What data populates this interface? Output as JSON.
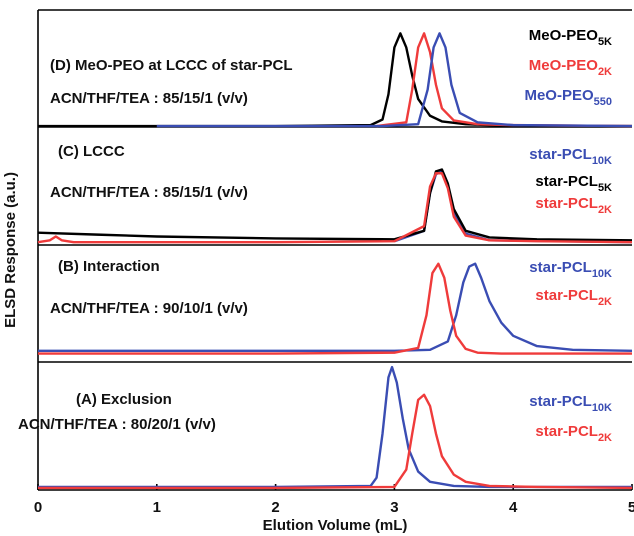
{
  "chart_data": {
    "type": "line",
    "xlabel": "Elution Volume (mL)",
    "ylabel": "ELSD Response (a.u.)",
    "xlim": [
      0,
      5
    ],
    "xticks": [
      0,
      1,
      2,
      3,
      4,
      5
    ],
    "panels": [
      {
        "labels": [
          "(D) MeO-PEO at LCCC of star-PCL",
          "ACN/THF/TEA : 85/15/1 (v/v)"
        ],
        "ylim": [
          0,
          1.25
        ],
        "series": [
          {
            "name": "MeO-PEO",
            "name_sub": "5K",
            "color": "#000000",
            "x": [
              0,
              1,
              2,
              2.8,
              2.9,
              2.95,
              3.0,
              3.05,
              3.1,
              3.15,
              3.2,
              3.3,
              3.4,
              3.6,
              3.8,
              4.2,
              5
            ],
            "values": [
              0.01,
              0.01,
              0.01,
              0.02,
              0.08,
              0.35,
              0.85,
              1.0,
              0.85,
              0.55,
              0.3,
              0.12,
              0.06,
              0.03,
              0.02,
              0.01,
              0.01
            ]
          },
          {
            "name": "MeO-PEO",
            "name_sub": "2K",
            "color": "#ef3b3b",
            "x": [
              2.85,
              3.1,
              3.15,
              3.2,
              3.25,
              3.3,
              3.35,
              3.4,
              3.5,
              3.7,
              4.0,
              5
            ],
            "values": [
              0.01,
              0.05,
              0.4,
              0.85,
              1.0,
              0.8,
              0.45,
              0.2,
              0.07,
              0.03,
              0.02,
              0.01
            ]
          },
          {
            "name": "MeO-PEO",
            "name_sub": "550",
            "color": "#3a4db3",
            "x": [
              1.0,
              2.9,
              3.2,
              3.28,
              3.33,
              3.38,
              3.43,
              3.48,
              3.55,
              3.7,
              4.0,
              5
            ],
            "values": [
              0.01,
              0.01,
              0.03,
              0.4,
              0.85,
              1.0,
              0.85,
              0.45,
              0.15,
              0.05,
              0.02,
              0.01
            ]
          }
        ]
      },
      {
        "labels": [
          "(C) LCCC",
          "ACN/THF/TEA : 85/15/1 (v/v)"
        ],
        "ylim": [
          0,
          1.25
        ],
        "series": [
          {
            "name": "star-PCL",
            "name_sub": "10K",
            "color": "#3a4db3",
            "x": [
              3,
              3.25,
              3.3,
              3.35,
              3.4,
              3.45,
              3.5,
              3.6,
              3.8,
              5
            ],
            "values": [
              0.04,
              0.15,
              0.55,
              0.75,
              0.78,
              0.62,
              0.35,
              0.12,
              0.05,
              0.03
            ]
          },
          {
            "name": "star-PCL",
            "name_sub": "5K",
            "color": "#000000",
            "x": [
              0,
              0.5,
              1,
              2,
              3,
              3.25,
              3.3,
              3.35,
              3.4,
              3.45,
              3.5,
              3.6,
              3.8,
              4.2,
              5
            ],
            "values": [
              0.13,
              0.11,
              0.09,
              0.07,
              0.06,
              0.15,
              0.55,
              0.78,
              0.8,
              0.65,
              0.38,
              0.15,
              0.08,
              0.06,
              0.05
            ]
          },
          {
            "name": "star-PCL",
            "name_sub": "2K",
            "color": "#ef3b3b",
            "x": [
              0,
              0.1,
              0.15,
              0.2,
              0.3,
              1,
              2,
              3,
              3.25,
              3.3,
              3.35,
              3.4,
              3.45,
              3.5,
              3.6,
              3.8,
              4.2,
              5
            ],
            "values": [
              0.03,
              0.05,
              0.09,
              0.05,
              0.03,
              0.03,
              0.03,
              0.04,
              0.2,
              0.62,
              0.76,
              0.76,
              0.6,
              0.3,
              0.1,
              0.05,
              0.04,
              0.03
            ]
          }
        ]
      },
      {
        "labels": [
          "(B) Interaction",
          "ACN/THF/TEA : 90/10/1 (v/v)"
        ],
        "ylim": [
          0,
          1.25
        ],
        "series": [
          {
            "name": "star-PCL",
            "name_sub": "10K",
            "color": "#3a4db3",
            "x": [
              0,
              1,
              2,
              3,
              3.3,
              3.45,
              3.52,
              3.58,
              3.63,
              3.68,
              3.73,
              3.8,
              3.9,
              4.0,
              4.2,
              4.5,
              5
            ],
            "values": [
              0.12,
              0.12,
              0.12,
              0.12,
              0.13,
              0.22,
              0.5,
              0.85,
              1.02,
              1.05,
              0.9,
              0.65,
              0.42,
              0.28,
              0.17,
              0.13,
              0.12
            ]
          },
          {
            "name": "star-PCL",
            "name_sub": "2K",
            "color": "#ef3b3b",
            "x": [
              0,
              1,
              2,
              3,
              3.2,
              3.27,
              3.32,
              3.37,
              3.42,
              3.47,
              3.52,
              3.6,
              3.7,
              3.9,
              4.2,
              5
            ],
            "values": [
              0.09,
              0.09,
              0.09,
              0.1,
              0.15,
              0.5,
              0.95,
              1.05,
              0.9,
              0.55,
              0.28,
              0.14,
              0.1,
              0.09,
              0.09,
              0.09
            ]
          }
        ]
      },
      {
        "labels": [
          "(A) Exclusion",
          "ACN/THF/TEA : 80/20/1 (v/v)"
        ],
        "ylim": [
          0,
          1.25
        ],
        "series": [
          {
            "name": "star-PCL",
            "name_sub": "10K",
            "color": "#3a4db3",
            "x": [
              0,
              1,
              2,
              2.8,
              2.85,
              2.9,
              2.95,
              2.98,
              3.02,
              3.07,
              3.12,
              3.2,
              3.3,
              3.5,
              3.8,
              5
            ],
            "values": [
              0.03,
              0.03,
              0.03,
              0.04,
              0.12,
              0.55,
              1.1,
              1.2,
              1.05,
              0.7,
              0.4,
              0.18,
              0.08,
              0.04,
              0.03,
              0.03
            ]
          },
          {
            "name": "star-PCL",
            "name_sub": "2K",
            "color": "#ef3b3b",
            "x": [
              0,
              1,
              2,
              3,
              3.1,
              3.15,
              3.2,
              3.25,
              3.3,
              3.35,
              3.4,
              3.5,
              3.6,
              3.8,
              4.2,
              5
            ],
            "values": [
              0.02,
              0.02,
              0.02,
              0.03,
              0.2,
              0.55,
              0.88,
              0.93,
              0.82,
              0.55,
              0.33,
              0.15,
              0.08,
              0.04,
              0.03,
              0.02
            ]
          }
        ]
      }
    ]
  }
}
